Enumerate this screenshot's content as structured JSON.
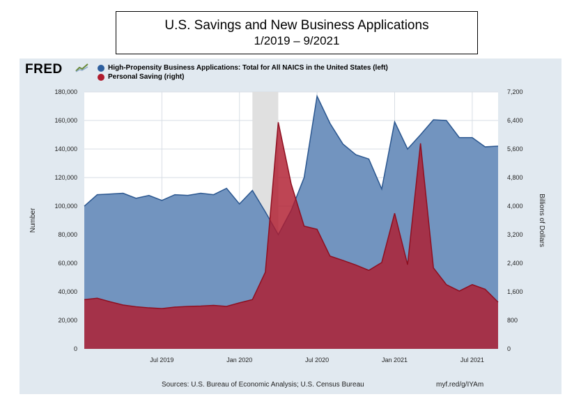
{
  "title": {
    "line1": "U.S. Savings and New Business Applications",
    "line2": "1/2019 – 9/2021"
  },
  "logo": {
    "text": "FRED",
    "icon": "fred-chart-icon"
  },
  "legend": {
    "items": [
      {
        "label": "High-Propensity Business Applications: Total for All NAICS in the United States (left)",
        "color": "#2e5f9e"
      },
      {
        "label": "Personal Saving (right)",
        "color": "#b01c2e"
      }
    ]
  },
  "footer": {
    "sources": "Sources: U.S. Bureau of Economic Analysis; U.S. Census Bureau",
    "link": "myf.red/g/IYAm"
  },
  "colors": {
    "panel_bg": "#e1e9f0",
    "business_area": "#7294bf",
    "business_line": "#2a568f",
    "saving_area": "#b01c2e",
    "saving_line": "#8e0f20",
    "recession_band": "#e0e0e0"
  },
  "chart_data": {
    "type": "area",
    "x_start": "2019-01",
    "x_end": "2021-09",
    "x_ticks": [
      {
        "date": "2019-07",
        "label": "Jul 2019"
      },
      {
        "date": "2020-01",
        "label": "Jan 2020"
      },
      {
        "date": "2020-07",
        "label": "Jul 2020"
      },
      {
        "date": "2021-01",
        "label": "Jan 2021"
      },
      {
        "date": "2021-07",
        "label": "Jul 2021"
      }
    ],
    "y_left": {
      "label": "Number",
      "range": [
        0,
        180000
      ],
      "ticks": [
        "0",
        "20,000",
        "40,000",
        "60,000",
        "80,000",
        "100,000",
        "120,000",
        "140,000",
        "160,000",
        "180,000"
      ]
    },
    "y_right": {
      "label": "Billions of Dollars",
      "range": [
        0,
        7200
      ],
      "ticks": [
        "0",
        "800",
        "1,600",
        "2,400",
        "3,200",
        "4,000",
        "4,800",
        "5,600",
        "6,400",
        "7,200"
      ]
    },
    "recession": {
      "start": "2020-02",
      "end": "2020-04"
    },
    "grid": true,
    "series": [
      {
        "name": "High-Propensity Business Applications: Total for All NAICS in the United States (left)",
        "axis": "left",
        "dates": [
          "2019-01",
          "2019-02",
          "2019-03",
          "2019-04",
          "2019-05",
          "2019-06",
          "2019-07",
          "2019-08",
          "2019-09",
          "2019-10",
          "2019-11",
          "2019-12",
          "2020-01",
          "2020-02",
          "2020-03",
          "2020-04",
          "2020-05",
          "2020-06",
          "2020-07",
          "2020-08",
          "2020-09",
          "2020-10",
          "2020-11",
          "2020-12",
          "2021-01",
          "2021-02",
          "2021-03",
          "2021-04",
          "2021-05",
          "2021-06",
          "2021-07",
          "2021-08",
          "2021-09"
        ],
        "values": [
          100000,
          108000,
          108500,
          109000,
          105500,
          107500,
          104000,
          108000,
          107500,
          109000,
          108000,
          112500,
          101500,
          111000,
          96000,
          80000,
          97000,
          120000,
          177000,
          158000,
          143500,
          136000,
          133000,
          112000,
          159000,
          140000,
          150000,
          160500,
          160000,
          148000,
          148000,
          141500,
          142000
        ]
      },
      {
        "name": "Personal Saving (right)",
        "axis": "right",
        "dates": [
          "2019-01",
          "2019-02",
          "2019-03",
          "2019-04",
          "2019-05",
          "2019-06",
          "2019-07",
          "2019-08",
          "2019-09",
          "2019-10",
          "2019-11",
          "2019-12",
          "2020-01",
          "2020-02",
          "2020-03",
          "2020-04",
          "2020-05",
          "2020-06",
          "2020-07",
          "2020-08",
          "2020-09",
          "2020-10",
          "2020-11",
          "2020-12",
          "2021-01",
          "2021-02",
          "2021-03",
          "2021-04",
          "2021-05",
          "2021-06",
          "2021-07",
          "2021-08",
          "2021-09"
        ],
        "values": [
          1380,
          1420,
          1320,
          1230,
          1180,
          1150,
          1130,
          1170,
          1190,
          1200,
          1220,
          1190,
          1290,
          1380,
          2150,
          6350,
          4620,
          3440,
          3350,
          2600,
          2480,
          2350,
          2200,
          2420,
          3800,
          2360,
          5760,
          2270,
          1800,
          1620,
          1800,
          1670,
          1310
        ]
      }
    ]
  }
}
